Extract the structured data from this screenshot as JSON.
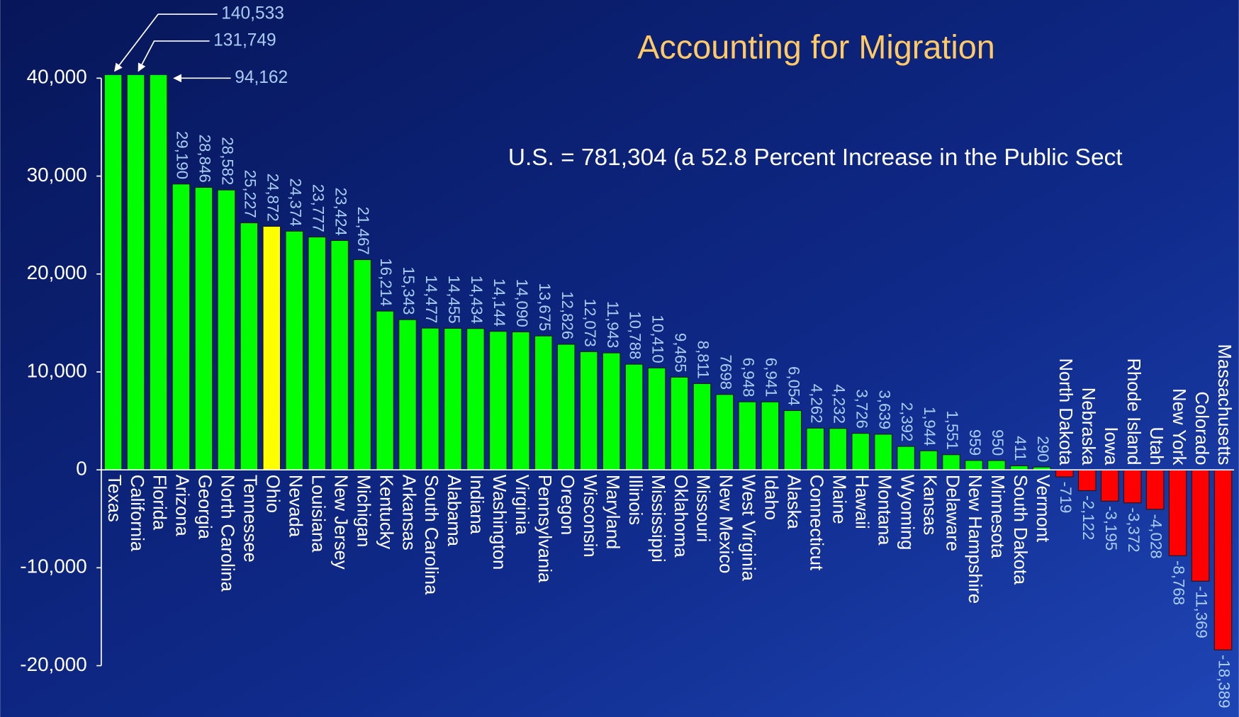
{
  "chart_data": {
    "type": "bar",
    "title": "Accounting for Migration",
    "subtitle": "U.S. = 781,304 (a 52.8 Percent Increase in the Public Sect",
    "categories": [
      "Texas",
      "California",
      "Florida",
      "Arizona",
      "Georgia",
      "North Carolina",
      "Tennessee",
      "Ohio",
      "Nevada",
      "Louisiana",
      "New Jersey",
      "Michigan",
      "Kentucky",
      "Arkansas",
      "South Carolina",
      "Alabama",
      "Indiana",
      "Washington",
      "Virginia",
      "Pennsylvania",
      "Oregon",
      "Wisconsin",
      "Maryland",
      "Illinois",
      "Mississippi",
      "Oklahoma",
      "Missouri",
      "New Mexico",
      "West Virginia",
      "Idaho",
      "Alaska",
      "Connecticut",
      "Maine",
      "Hawaii",
      "Montana",
      "Wyoming",
      "Kansas",
      "Delaware",
      "New Hampshire",
      "Minnesota",
      "South Dakota",
      "Vermont",
      "North Dakota",
      "Nebraska",
      "Iowa",
      "Rhode Island",
      "Utah",
      "New York",
      "Colorado",
      "Massachusetts"
    ],
    "values": [
      140533,
      131749,
      94162,
      29190,
      28846,
      28582,
      25227,
      24872,
      24374,
      23777,
      23424,
      21467,
      16214,
      15343,
      14477,
      14455,
      14434,
      14144,
      14090,
      13675,
      12826,
      12073,
      11943,
      10788,
      10410,
      9465,
      8811,
      7698,
      6948,
      6941,
      6054,
      4262,
      4232,
      3726,
      3639,
      2392,
      1944,
      1551,
      959,
      950,
      411,
      290,
      -719,
      -2122,
      -3195,
      -3372,
      -4028,
      -8768,
      -11369,
      -18389
    ],
    "value_labels": [
      "140,533",
      "131,749",
      "94,162",
      "29,190",
      "28,846",
      "28,582",
      "25,227",
      "24,872",
      "24,374",
      "23,777",
      "23,424",
      "21,467",
      "16,214",
      "15,343",
      "14,477",
      "14,455",
      "14,434",
      "14,144",
      "14,090",
      "13,675",
      "12,826",
      "12,073",
      "11,943",
      "10,788",
      "10,410",
      "9,465",
      "8,811",
      "7698",
      "6,948",
      "6,941",
      "6,054",
      "4,262",
      "4,232",
      "3,726",
      "3,639",
      "2,392",
      "1,944",
      "1,551",
      "959",
      "950",
      "411",
      "290",
      "-719",
      "-2,122",
      "-3,195",
      "-3,372",
      "-4,028",
      "-8,768",
      "-11,369",
      "-18,389"
    ],
    "colors": [
      "#00ff00",
      "#00ff00",
      "#00ff00",
      "#00ff00",
      "#00ff00",
      "#00ff00",
      "#00ff00",
      "#ffff00",
      "#00ff00",
      "#00ff00",
      "#00ff00",
      "#00ff00",
      "#00ff00",
      "#00ff00",
      "#00ff00",
      "#00ff00",
      "#00ff00",
      "#00ff00",
      "#00ff00",
      "#00ff00",
      "#00ff00",
      "#00ff00",
      "#00ff00",
      "#00ff00",
      "#00ff00",
      "#00ff00",
      "#00ff00",
      "#00ff00",
      "#00ff00",
      "#00ff00",
      "#00ff00",
      "#00ff00",
      "#00ff00",
      "#00ff00",
      "#00ff00",
      "#00ff00",
      "#00ff00",
      "#00ff00",
      "#00ff00",
      "#00ff00",
      "#00ff00",
      "#00ff00",
      "#ff0000",
      "#ff0000",
      "#ff0000",
      "#ff0000",
      "#ff0000",
      "#ff0000",
      "#ff0000",
      "#ff0000"
    ],
    "ylim": [
      -20000,
      40000
    ],
    "yticks": [
      {
        "value": -20000,
        "label": "-20,000"
      },
      {
        "value": -10000,
        "label": "-10,000"
      },
      0,
      {
        "value": 10000,
        "label": "10,000"
      },
      {
        "value": 20000,
        "label": "20,000"
      },
      {
        "value": 30000,
        "label": "30,000"
      },
      {
        "value": 40000,
        "label": "40,000"
      }
    ],
    "grid": false
  }
}
